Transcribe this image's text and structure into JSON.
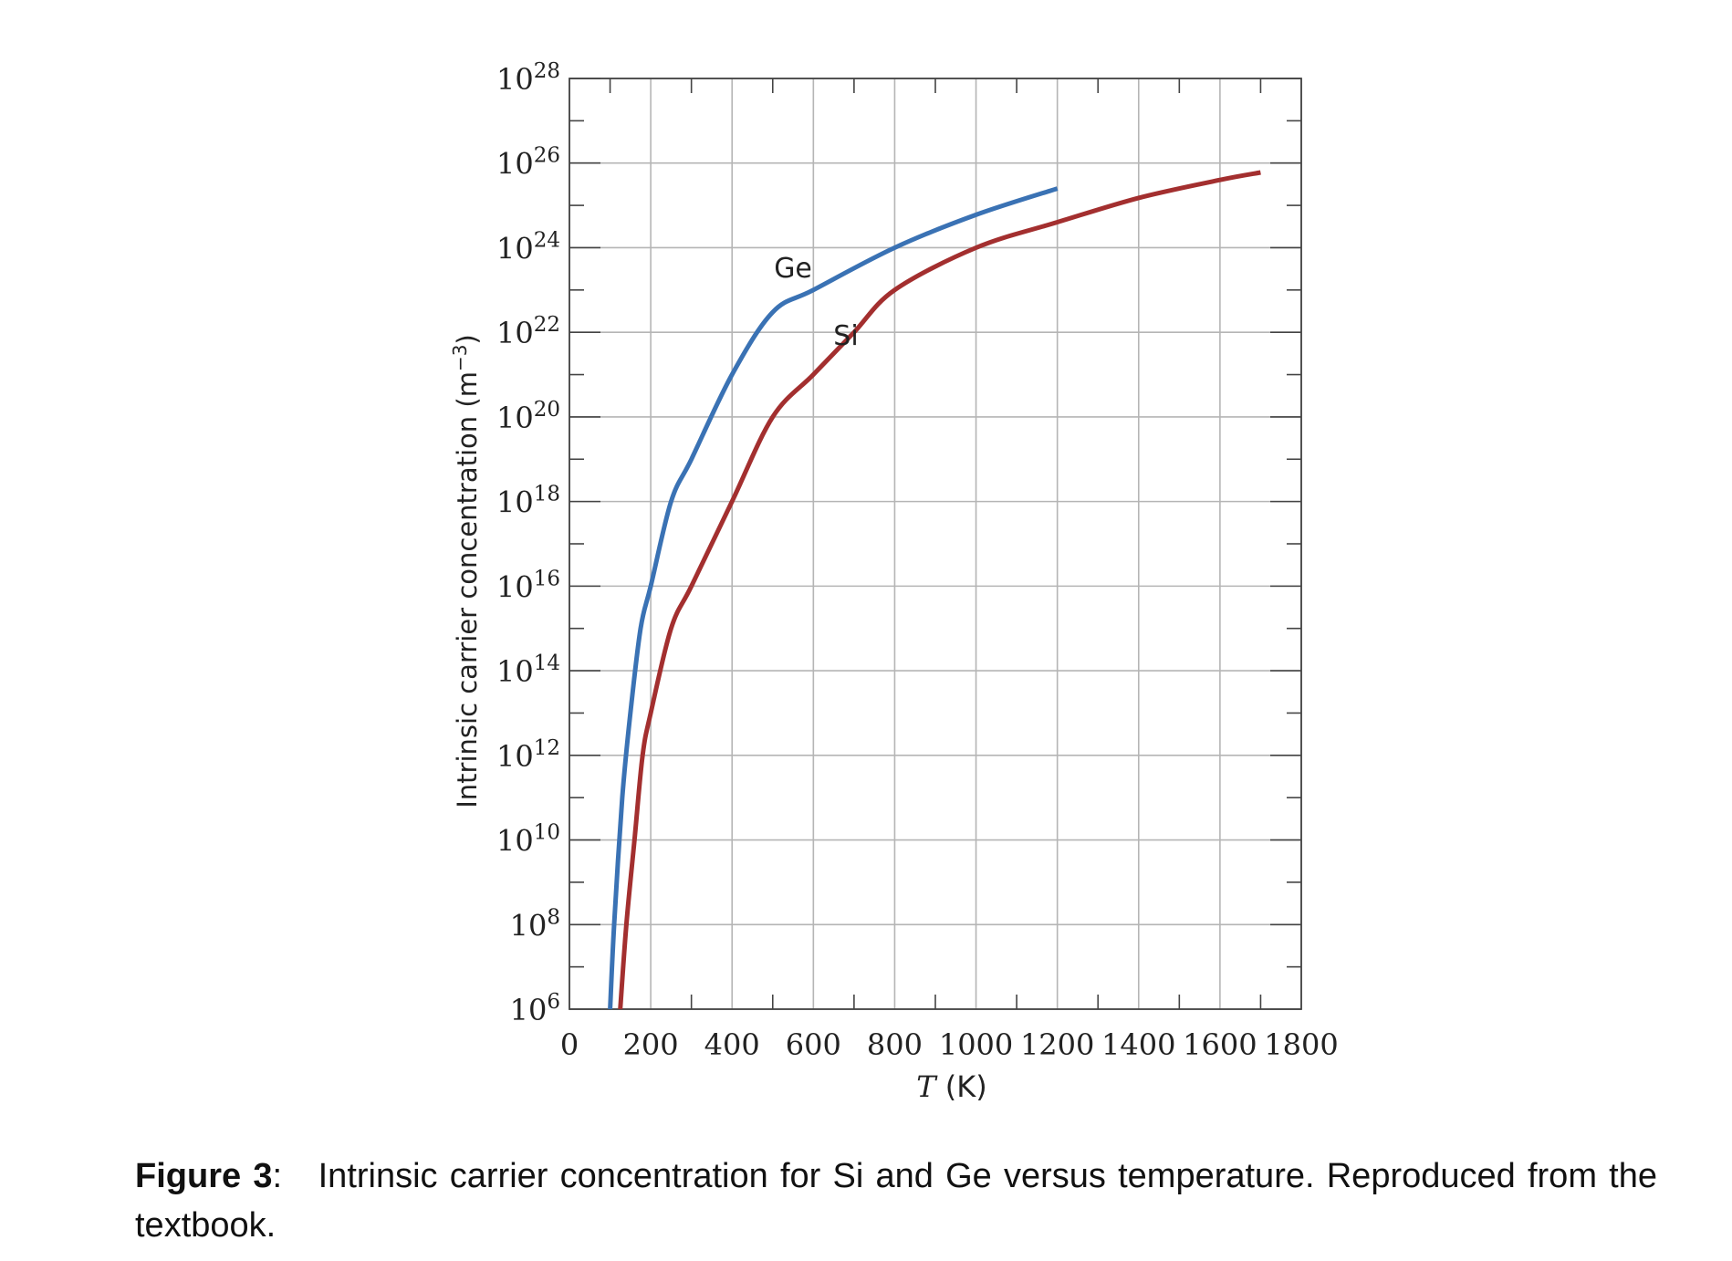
{
  "caption": {
    "label": "Figure 3",
    "separator": ":",
    "text": "Intrinsic carrier concentration for Si and Ge versus temperature.  Reproduced from the textbook."
  },
  "colors": {
    "Ge": "#3a72b4",
    "Si": "#a32f2f",
    "grid": "#b5b5b5",
    "axis": "#444444"
  },
  "chart_data": {
    "type": "line",
    "title": "",
    "xlabel": {
      "var": "T",
      "unit": "(K)"
    },
    "ylabel": {
      "text": "Intrinsic carrier concentration (m",
      "sup": "−3",
      "close": ")"
    },
    "xlim": [
      0,
      1800
    ],
    "ylim_exponent": [
      6,
      28
    ],
    "y_scale": "log10",
    "grid": true,
    "x_ticks": [
      0,
      200,
      400,
      600,
      800,
      1000,
      1200,
      1400,
      1600,
      1800
    ],
    "y_tick_labels": [
      {
        "base": "10",
        "exp": "28"
      },
      {
        "base": "10",
        "exp": "26"
      },
      {
        "base": "10",
        "exp": "24"
      },
      {
        "base": "10",
        "exp": "22"
      },
      {
        "base": "10",
        "exp": "20"
      },
      {
        "base": "10",
        "exp": "18"
      },
      {
        "base": "10",
        "exp": "16"
      },
      {
        "base": "10",
        "exp": "14"
      },
      {
        "base": "10",
        "exp": "12"
      },
      {
        "base": "10",
        "exp": "10"
      },
      {
        "base": "10",
        "exp": "8"
      },
      {
        "base": "10",
        "exp": "6"
      }
    ],
    "series": [
      {
        "name": "Ge",
        "x": [
          100,
          110,
          130,
          150,
          175,
          200,
          250,
          300,
          400,
          500,
          600,
          800,
          1000,
          1200
        ],
        "y": [
          1000000.0,
          100000000.0,
          100000000000.0,
          10000000000000.0,
          1000000000000000.0,
          1e+16,
          1e+18,
          1e+19,
          1e+21,
          3e+22,
          1e+23,
          1e+24,
          6e+24,
          2.5e+25
        ]
      },
      {
        "name": "Si",
        "x": [
          125,
          140,
          160,
          180,
          200,
          250,
          300,
          400,
          500,
          600,
          700,
          800,
          1000,
          1200,
          1400,
          1600,
          1700
        ],
        "y": [
          1000000.0,
          100000000.0,
          10000000000.0,
          1000000000000.0,
          10000000000000.0,
          1000000000000000.0,
          1e+16,
          1e+18,
          1e+20,
          1e+21,
          1e+22,
          1e+23,
          1e+24,
          4e+24,
          1.5e+25,
          4e+25,
          6e+25
        ]
      }
    ]
  }
}
